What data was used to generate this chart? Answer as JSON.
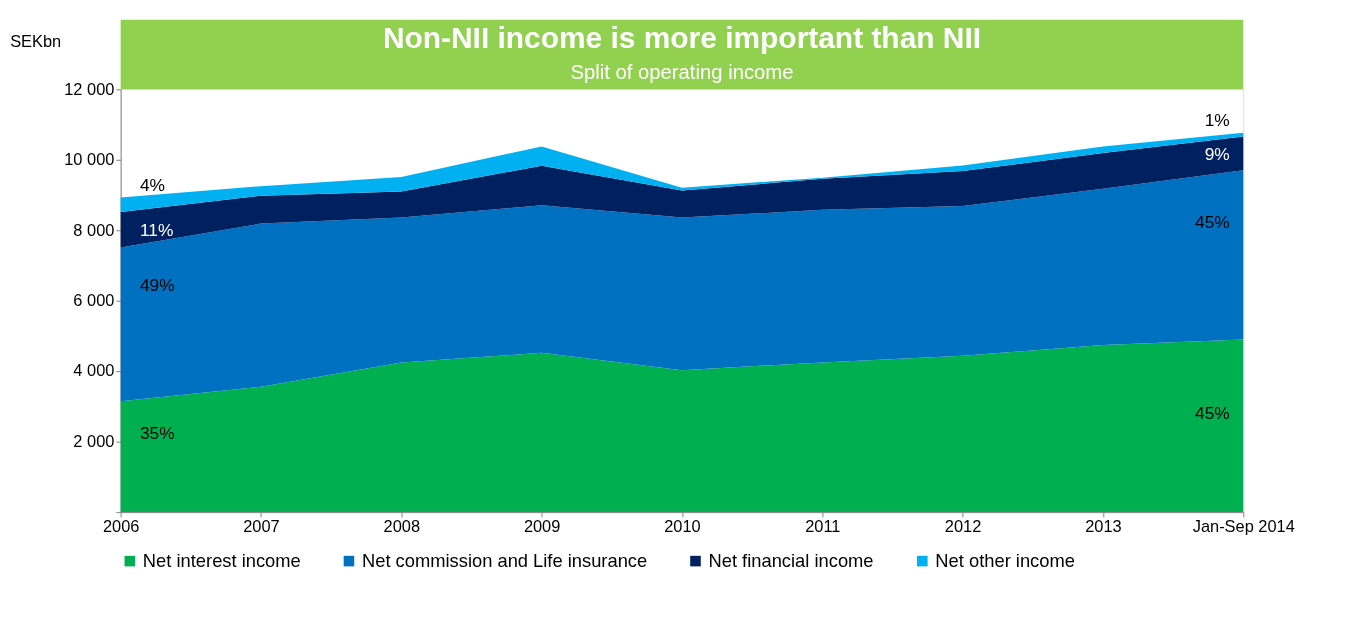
{
  "chart_data": {
    "type": "area",
    "stacked": true,
    "title": "Non-NII income is more important than NII",
    "subtitle": "Split of operating income",
    "ylabel": "SEKbn",
    "categories": [
      "2006",
      "2007",
      "2008",
      "2009",
      "2010",
      "2011",
      "2012",
      "2013",
      "Jan-Sep 2014"
    ],
    "series": [
      {
        "name": "Net interest income",
        "color": "#00b050",
        "values": [
          3150,
          3560,
          4250,
          4520,
          4030,
          4250,
          4440,
          4740,
          4900
        ]
      },
      {
        "name": "Net commission and Life insurance",
        "color": "#0070c0",
        "values": [
          4360,
          4630,
          4110,
          4190,
          4330,
          4330,
          4250,
          4440,
          4800
        ]
      },
      {
        "name": "Net financial income",
        "color": "#002060",
        "values": [
          1010,
          790,
          740,
          1120,
          770,
          880,
          990,
          1010,
          960
        ]
      },
      {
        "name": "Net other income",
        "color": "#00b0f0",
        "values": [
          410,
          270,
          410,
          550,
          80,
          30,
          160,
          190,
          110
        ]
      }
    ],
    "ylim": [
      0,
      12000
    ],
    "yticks": [
      {
        "value": 0,
        "label": null
      },
      {
        "value": 2000,
        "label": "2 000"
      },
      {
        "value": 4000,
        "label": "4 000"
      },
      {
        "value": 6000,
        "label": "6 000"
      },
      {
        "value": 8000,
        "label": "8 000"
      },
      {
        "value": 10000,
        "label": "10 000"
      },
      {
        "value": 12000,
        "label": "12 000"
      }
    ],
    "grid": false,
    "legend": "bottom",
    "annotations": [
      {
        "text": "4%",
        "x": "2006",
        "y": 8930
      },
      {
        "text": "11%",
        "x": "2006",
        "y": 7970
      },
      {
        "text": "49%",
        "x": "2006",
        "y": 6400
      },
      {
        "text": "35%",
        "x": "2006",
        "y": 2220
      },
      {
        "text": "1%",
        "x": "Jan-Sep 2014",
        "y": 10770
      },
      {
        "text": "9%",
        "x": "Jan-Sep 2014",
        "y": 10130
      },
      {
        "text": "45%",
        "x": "Jan-Sep 2014",
        "y": 8190
      },
      {
        "text": "45%",
        "x": "Jan-Sep 2014",
        "y": 2770
      }
    ]
  }
}
